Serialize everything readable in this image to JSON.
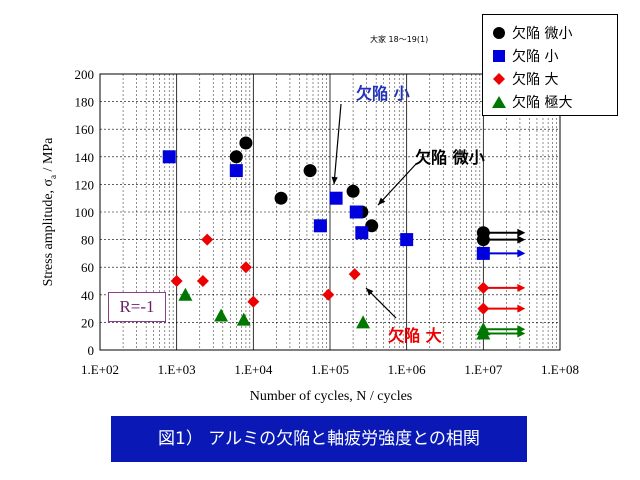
{
  "chart_data": {
    "type": "scatter",
    "xlabel": "Number of cycles, N / cycles",
    "ylabel_main": "Stress amplitude, σ",
    "ylabel_sub": "a",
    "ylabel_unit": " / MPa",
    "xscale": "log",
    "xlim": [
      100,
      100000000
    ],
    "ylim": [
      0,
      200
    ],
    "xticks": [
      100,
      1000,
      10000,
      100000,
      1000000,
      10000000,
      100000000
    ],
    "xtick_labels": [
      "1.E+02",
      "1.E+03",
      "1.E+04",
      "1.E+05",
      "1.E+06",
      "1.E+07",
      "1.E+08"
    ],
    "yticks": [
      0,
      20,
      40,
      60,
      80,
      100,
      120,
      140,
      160,
      180,
      200
    ],
    "grid": true,
    "legend_position": "top-right",
    "series": [
      {
        "name": "欠陥 微小",
        "marker": "circle",
        "color": "#000000",
        "points": [
          [
            6000,
            140
          ],
          [
            8000,
            150
          ],
          [
            23000,
            110
          ],
          [
            55000,
            130
          ],
          [
            200000,
            115
          ],
          [
            260000,
            100
          ],
          [
            350000,
            90
          ],
          [
            10000000,
            85
          ],
          [
            10000000,
            80
          ]
        ],
        "runouts": [
          85,
          80
        ]
      },
      {
        "name": "欠陥 小",
        "marker": "square",
        "color": "#0000dd",
        "points": [
          [
            800,
            140
          ],
          [
            6000,
            130
          ],
          [
            75000,
            90
          ],
          [
            120000,
            110
          ],
          [
            220000,
            100
          ],
          [
            260000,
            85
          ],
          [
            1000000,
            80
          ],
          [
            10000000,
            70
          ]
        ],
        "runouts": [
          70
        ]
      },
      {
        "name": "欠陥 大",
        "marker": "diamond",
        "color": "#ee0000",
        "points": [
          [
            1000,
            50
          ],
          [
            2500,
            80
          ],
          [
            2200,
            50
          ],
          [
            8000,
            60
          ],
          [
            10000,
            35
          ],
          [
            95000,
            40
          ],
          [
            210000,
            55
          ],
          [
            10000000,
            45
          ],
          [
            10000000,
            30
          ]
        ],
        "runouts": [
          45,
          30
        ]
      },
      {
        "name": "欠陥 極大",
        "marker": "triangle",
        "color": "#007700",
        "points": [
          [
            1300,
            40
          ],
          [
            3800,
            25
          ],
          [
            7500,
            22
          ],
          [
            270000,
            20
          ],
          [
            10000000,
            15
          ],
          [
            10000000,
            12
          ]
        ],
        "runouts": [
          15,
          12
        ]
      }
    ],
    "annotations": [
      "欠陥 小",
      "欠陥 微小",
      "欠陥 大"
    ]
  },
  "header_note": "大家 18〜19(1)",
  "condition_label": "R=-1",
  "caption": "図1） アルミの欠陥と軸疲労強度との相関"
}
